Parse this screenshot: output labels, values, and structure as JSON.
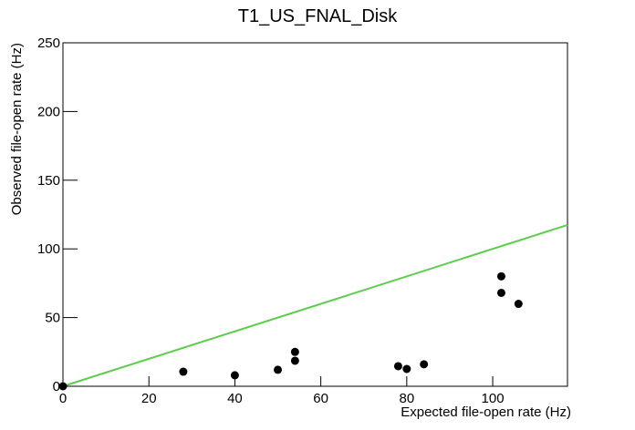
{
  "chart_data": {
    "type": "scatter",
    "title": "T1_US_FNAL_Disk",
    "x_label": "Expected file-open rate (Hz)",
    "y_label": "Observed file-open rate (Hz)",
    "x": [
      0,
      28,
      40,
      50,
      54,
      54,
      78,
      80,
      84,
      102,
      102,
      106
    ],
    "values": [
      0,
      10.6,
      8,
      12,
      25,
      18.6,
      14.6,
      12.6,
      16,
      80,
      68,
      60
    ],
    "color": "#000000",
    "line": {
      "x": [
        0,
        117.4
      ],
      "values": [
        0,
        117.4
      ],
      "color": "#5ccc4c"
    },
    "xlim": [
      0,
      117.4
    ],
    "ylim": [
      0,
      250
    ],
    "xticks": [
      0,
      20,
      40,
      60,
      80,
      100
    ],
    "yticks": [
      0,
      50,
      100,
      150,
      200,
      250
    ]
  }
}
